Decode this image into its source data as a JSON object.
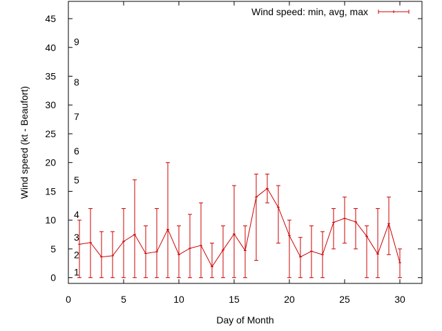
{
  "chart_data": {
    "type": "line",
    "title": "",
    "xlabel": "Day of Month",
    "ylabel": "Wind speed (kt - Beaufort)",
    "xlim": [
      0,
      32
    ],
    "ylim": [
      -1,
      48
    ],
    "x_ticks": [
      0,
      5,
      10,
      15,
      20,
      25,
      30
    ],
    "y_ticks": [
      0,
      5,
      10,
      15,
      20,
      25,
      30,
      35,
      40,
      45
    ],
    "beaufort_scale": [
      {
        "label": "1",
        "kt": 1
      },
      {
        "label": "2",
        "kt": 4
      },
      {
        "label": "3",
        "kt": 7
      },
      {
        "label": "4",
        "kt": 11
      },
      {
        "label": "5",
        "kt": 17
      },
      {
        "label": "6",
        "kt": 22
      },
      {
        "label": "7",
        "kt": 28
      },
      {
        "label": "8",
        "kt": 34
      },
      {
        "label": "9",
        "kt": 41
      }
    ],
    "legend": {
      "position": "top-right"
    },
    "series": [
      {
        "name": "Wind speed: min, avg, max",
        "color": "#cc0000",
        "x": [
          1,
          2,
          3,
          4,
          5,
          6,
          7,
          8,
          9,
          10,
          11,
          12,
          13,
          14,
          15,
          16,
          17,
          18,
          19,
          20,
          21,
          22,
          23,
          24,
          25,
          26,
          27,
          28,
          29,
          30
        ],
        "avg": [
          5.8,
          6.1,
          3.6,
          3.8,
          6.3,
          7.5,
          4.2,
          4.5,
          8.4,
          4.0,
          5.1,
          5.6,
          1.9,
          4.8,
          7.6,
          4.7,
          14.0,
          15.5,
          12.2,
          7.3,
          3.6,
          4.6,
          4.0,
          9.6,
          10.3,
          9.7,
          7.2,
          4.1,
          9.4,
          2.6
        ],
        "min": [
          0,
          0,
          0,
          0,
          0,
          0,
          0,
          0,
          0,
          0,
          0,
          0,
          0,
          0,
          0,
          0,
          3,
          13,
          6,
          0,
          0,
          0,
          0,
          5,
          6,
          5,
          0,
          0,
          4,
          0
        ],
        "max": [
          10,
          12,
          8,
          8,
          12,
          17,
          9,
          12,
          20,
          9,
          11,
          13,
          6,
          9,
          16,
          9,
          18,
          18,
          16,
          10,
          7,
          9,
          8,
          12,
          14,
          12,
          9,
          12,
          14,
          5
        ]
      }
    ]
  }
}
